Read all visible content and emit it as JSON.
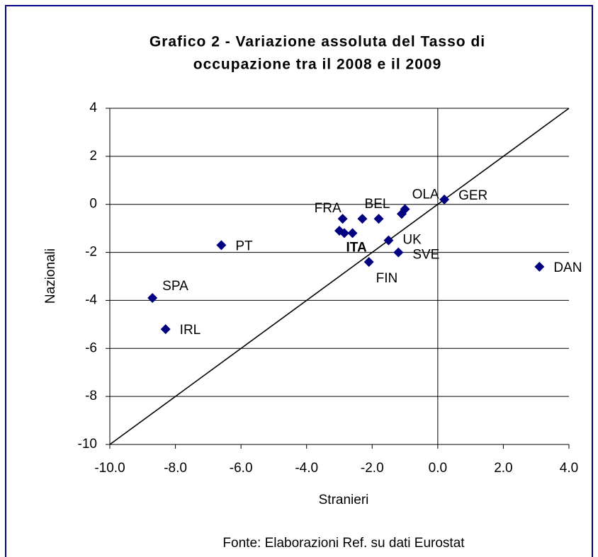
{
  "chart_data": {
    "type": "scatter",
    "title": "Grafico 2 - Variazione assoluta del Tasso di",
    "subtitle": "occupazione tra il 2008 e il 2009",
    "x_label": "Stranieri",
    "y_label": "Nazionali",
    "source": "Fonte: Elaborazioni Ref. su dati Eurostat",
    "color": "#000080",
    "x": [
      -6.6,
      -8.7,
      -8.3,
      3.1,
      0.2,
      -1.0,
      -1.1,
      -1.8,
      -2.9,
      -2.3,
      -3.0,
      -2.85,
      -2.6,
      -1.5,
      -1.2,
      -2.1
    ],
    "values": [
      -1.7,
      -3.9,
      -5.2,
      -2.6,
      0.2,
      -0.2,
      -0.4,
      -0.6,
      -0.6,
      -0.6,
      -1.1,
      -1.2,
      -1.2,
      -1.5,
      -2.0,
      -2.4
    ],
    "labels": [
      "PT",
      "SPA",
      "IRL",
      "DAN",
      "GER",
      "OLA",
      null,
      "BEL",
      "FRA",
      null,
      null,
      null,
      "ITA",
      "UK",
      "SVE",
      "FIN"
    ],
    "xlim": [
      -10,
      4
    ],
    "ylim": [
      -10,
      4
    ],
    "xticks": [
      {
        "value": -10,
        "label": "-10.0"
      },
      {
        "value": -8,
        "label": "-8.0"
      },
      {
        "value": -6,
        "label": "-6.0"
      },
      {
        "value": -4,
        "label": "-4.0"
      },
      {
        "value": -2,
        "label": "-2.0"
      },
      {
        "value": 0,
        "label": "0.0"
      },
      {
        "value": 2,
        "label": "2.0"
      },
      {
        "value": 4,
        "label": "4.0"
      }
    ],
    "yticks": [
      4,
      2,
      0,
      -2,
      -4,
      -6,
      -8,
      -10
    ],
    "grid": true
  }
}
